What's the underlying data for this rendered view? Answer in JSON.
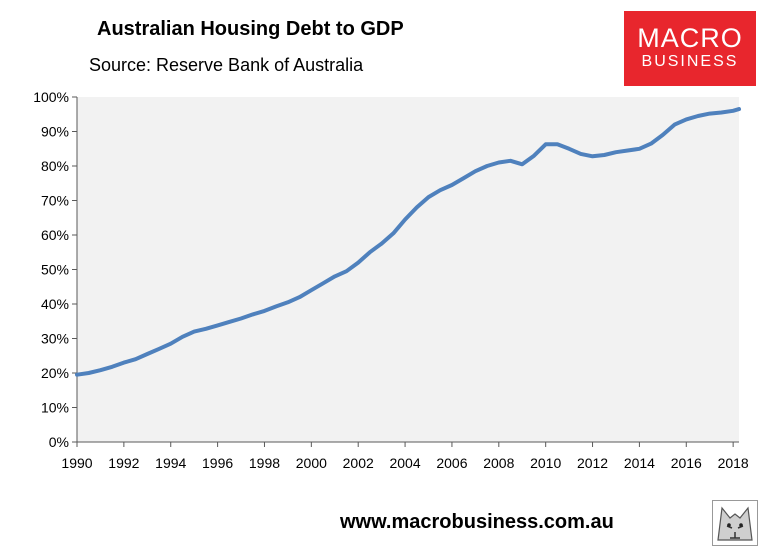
{
  "header": {
    "title": "Australian Housing Debt to GDP",
    "subtitle": "Source: Reserve Bank of Australia"
  },
  "logo": {
    "line1": "MACRO",
    "line2": "BUSINESS",
    "color": "#e8262d"
  },
  "footer": {
    "website": "www.macrobusiness.com.au"
  },
  "chart_data": {
    "type": "line",
    "title": "Australian Housing Debt to GDP",
    "subtitle": "Source: Reserve Bank of Australia",
    "xlabel": "",
    "ylabel": "",
    "xlim": [
      1990,
      2018.25
    ],
    "ylim": [
      0,
      100
    ],
    "y_ticks": [
      "0%",
      "10%",
      "20%",
      "30%",
      "40%",
      "50%",
      "60%",
      "70%",
      "80%",
      "90%",
      "100%"
    ],
    "x_ticks": [
      "1990",
      "1992",
      "1994",
      "1996",
      "1998",
      "2000",
      "2002",
      "2004",
      "2006",
      "2008",
      "2010",
      "2012",
      "2014",
      "2016",
      "2018"
    ],
    "grid": false,
    "legend": "none",
    "plot_background": "#f2f2f2",
    "line_color": "#4f81bd",
    "series": [
      {
        "x": [
          1990,
          1990.5,
          1991,
          1991.5,
          1992,
          1992.5,
          1993,
          1993.5,
          1994,
          1994.5,
          1995,
          1995.5,
          1996,
          1996.5,
          1997,
          1997.5,
          1998,
          1998.5,
          1999,
          1999.5,
          2000,
          2000.5,
          2001,
          2001.5,
          2002,
          2002.5,
          2003,
          2003.5,
          2004,
          2004.5,
          2005,
          2005.5,
          2006,
          2006.5,
          2007,
          2007.5,
          2008,
          2008.5,
          2009,
          2009.5,
          2010,
          2010.5,
          2011,
          2011.5,
          2012,
          2012.5,
          2013,
          2013.5,
          2014,
          2014.5,
          2015,
          2015.5,
          2016,
          2016.5,
          2017,
          2017.5,
          2018,
          2018.25
        ],
        "values": [
          19.5,
          20,
          20.8,
          21.8,
          23,
          24,
          25.5,
          27,
          28.5,
          30.5,
          32,
          32.8,
          33.8,
          34.8,
          35.8,
          37,
          38,
          39.3,
          40.5,
          42,
          44,
          46,
          48,
          49.5,
          52,
          55,
          57.5,
          60.5,
          64.5,
          68,
          71,
          73,
          74.5,
          76.5,
          78.5,
          80,
          81,
          81.5,
          80.5,
          83,
          86.3,
          86.3,
          85,
          83.5,
          82.8,
          83.2,
          84,
          84.5,
          85,
          86.5,
          89,
          92,
          93.5,
          94.5,
          95.2,
          95.5,
          96,
          96.5
        ]
      }
    ]
  }
}
